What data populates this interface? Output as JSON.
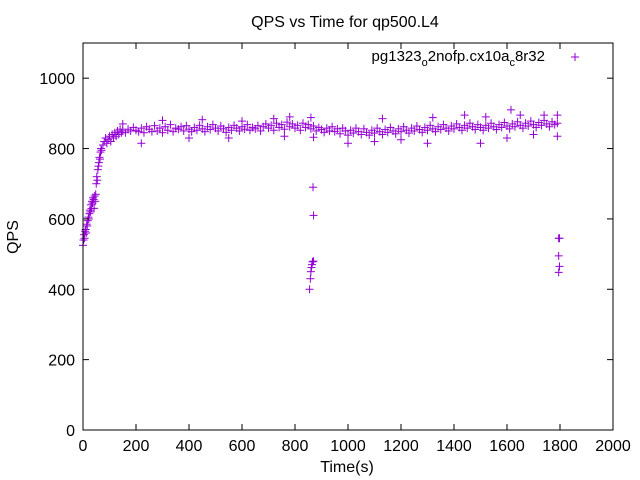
{
  "chart_data": {
    "type": "scatter",
    "title": "QPS vs Time for qp500.L4",
    "xlabel": "Time(s)",
    "ylabel": "QPS",
    "xlim": [
      0,
      2000
    ],
    "ylim": [
      0,
      1100
    ],
    "xticks": [
      0,
      200,
      400,
      600,
      800,
      1000,
      1200,
      1400,
      1600,
      1800,
      2000
    ],
    "yticks": [
      0,
      200,
      400,
      600,
      800,
      1000
    ],
    "grid": false,
    "legend_position": "top-right",
    "marker": "+",
    "color": "#9400d3",
    "series": [
      {
        "name": "pg1323_o2nofp.cx10a_c8r32",
        "name_parts": {
          "p1": "pg1323",
          "s1": "o",
          "p2": "2nofp.cx10a",
          "s2": "c",
          "p3": "8r32"
        },
        "points": [
          [
            0,
            525
          ],
          [
            2,
            540
          ],
          [
            4,
            555
          ],
          [
            6,
            545
          ],
          [
            8,
            565
          ],
          [
            10,
            570
          ],
          [
            12,
            560
          ],
          [
            14,
            585
          ],
          [
            16,
            580
          ],
          [
            18,
            595
          ],
          [
            20,
            605
          ],
          [
            22,
            600
          ],
          [
            24,
            615
          ],
          [
            26,
            625
          ],
          [
            28,
            620
          ],
          [
            30,
            640
          ],
          [
            32,
            630
          ],
          [
            34,
            650
          ],
          [
            36,
            645
          ],
          [
            38,
            660
          ],
          [
            40,
            655
          ],
          [
            42,
            630
          ],
          [
            44,
            665
          ],
          [
            46,
            650
          ],
          [
            48,
            670
          ],
          [
            50,
            700
          ],
          [
            52,
            720
          ],
          [
            54,
            710
          ],
          [
            56,
            740
          ],
          [
            58,
            750
          ],
          [
            60,
            760
          ],
          [
            62,
            775
          ],
          [
            64,
            770
          ],
          [
            66,
            790
          ],
          [
            68,
            800
          ],
          [
            70,
            795
          ],
          [
            75,
            810
          ],
          [
            80,
            820
          ],
          [
            85,
            830
          ],
          [
            90,
            815
          ],
          [
            95,
            825
          ],
          [
            100,
            835
          ],
          [
            105,
            820
          ],
          [
            110,
            840
          ],
          [
            115,
            830
          ],
          [
            120,
            845
          ],
          [
            125,
            835
          ],
          [
            130,
            850
          ],
          [
            135,
            840
          ],
          [
            140,
            855
          ],
          [
            145,
            845
          ],
          [
            150,
            850
          ],
          [
            160,
            845
          ],
          [
            170,
            855
          ],
          [
            180,
            850
          ],
          [
            190,
            860
          ],
          [
            200,
            852
          ],
          [
            210,
            848
          ],
          [
            220,
            858
          ],
          [
            230,
            845
          ],
          [
            240,
            862
          ],
          [
            250,
            855
          ],
          [
            260,
            848
          ],
          [
            270,
            865
          ],
          [
            280,
            850
          ],
          [
            290,
            858
          ],
          [
            300,
            845
          ],
          [
            310,
            862
          ],
          [
            320,
            852
          ],
          [
            330,
            868
          ],
          [
            340,
            848
          ],
          [
            350,
            858
          ],
          [
            360,
            855
          ],
          [
            370,
            862
          ],
          [
            380,
            850
          ],
          [
            390,
            865
          ],
          [
            400,
            855
          ],
          [
            410,
            848
          ],
          [
            420,
            860
          ],
          [
            430,
            852
          ],
          [
            440,
            866
          ],
          [
            450,
            856
          ],
          [
            460,
            848
          ],
          [
            470,
            862
          ],
          [
            480,
            854
          ],
          [
            490,
            868
          ],
          [
            500,
            858
          ],
          [
            510,
            850
          ],
          [
            520,
            864
          ],
          [
            530,
            856
          ],
          [
            540,
            846
          ],
          [
            550,
            860
          ],
          [
            560,
            852
          ],
          [
            570,
            866
          ],
          [
            580,
            858
          ],
          [
            590,
            850
          ],
          [
            600,
            862
          ],
          [
            610,
            855
          ],
          [
            620,
            868
          ],
          [
            630,
            852
          ],
          [
            640,
            860
          ],
          [
            650,
            856
          ],
          [
            660,
            865
          ],
          [
            670,
            850
          ],
          [
            680,
            862
          ],
          [
            690,
            870
          ],
          [
            700,
            858
          ],
          [
            710,
            866
          ],
          [
            720,
            852
          ],
          [
            730,
            872
          ],
          [
            740,
            860
          ],
          [
            750,
            868
          ],
          [
            760,
            855
          ],
          [
            770,
            875
          ],
          [
            780,
            862
          ],
          [
            790,
            870
          ],
          [
            800,
            858
          ],
          [
            810,
            866
          ],
          [
            820,
            852
          ],
          [
            830,
            872
          ],
          [
            840,
            860
          ],
          [
            850,
            868
          ],
          [
            860,
            856
          ],
          [
            870,
            864
          ],
          [
            880,
            850
          ],
          [
            890,
            860
          ],
          [
            900,
            854
          ],
          [
            910,
            846
          ],
          [
            920,
            858
          ],
          [
            930,
            850
          ],
          [
            940,
            862
          ],
          [
            950,
            848
          ],
          [
            960,
            856
          ],
          [
            970,
            842
          ],
          [
            980,
            858
          ],
          [
            990,
            850
          ],
          [
            1000,
            838
          ],
          [
            1010,
            852
          ],
          [
            1020,
            844
          ],
          [
            1030,
            858
          ],
          [
            1040,
            848
          ],
          [
            1050,
            840
          ],
          [
            1060,
            856
          ],
          [
            1070,
            846
          ],
          [
            1080,
            838
          ],
          [
            1090,
            852
          ],
          [
            1100,
            844
          ],
          [
            1110,
            858
          ],
          [
            1120,
            848
          ],
          [
            1130,
            840
          ],
          [
            1140,
            854
          ],
          [
            1150,
            846
          ],
          [
            1160,
            860
          ],
          [
            1170,
            850
          ],
          [
            1180,
            842
          ],
          [
            1190,
            856
          ],
          [
            1200,
            848
          ],
          [
            1210,
            862
          ],
          [
            1220,
            852
          ],
          [
            1230,
            844
          ],
          [
            1240,
            858
          ],
          [
            1250,
            850
          ],
          [
            1260,
            864
          ],
          [
            1270,
            854
          ],
          [
            1280,
            846
          ],
          [
            1290,
            860
          ],
          [
            1300,
            852
          ],
          [
            1310,
            866
          ],
          [
            1320,
            856
          ],
          [
            1330,
            848
          ],
          [
            1340,
            862
          ],
          [
            1350,
            854
          ],
          [
            1360,
            868
          ],
          [
            1370,
            858
          ],
          [
            1380,
            850
          ],
          [
            1390,
            864
          ],
          [
            1400,
            856
          ],
          [
            1410,
            870
          ],
          [
            1420,
            860
          ],
          [
            1430,
            852
          ],
          [
            1440,
            866
          ],
          [
            1450,
            858
          ],
          [
            1460,
            872
          ],
          [
            1470,
            862
          ],
          [
            1480,
            854
          ],
          [
            1490,
            868
          ],
          [
            1500,
            860
          ],
          [
            1510,
            852
          ],
          [
            1520,
            866
          ],
          [
            1530,
            858
          ],
          [
            1540,
            872
          ],
          [
            1550,
            862
          ],
          [
            1560,
            854
          ],
          [
            1570,
            868
          ],
          [
            1580,
            860
          ],
          [
            1590,
            874
          ],
          [
            1600,
            864
          ],
          [
            1610,
            856
          ],
          [
            1620,
            870
          ],
          [
            1630,
            862
          ],
          [
            1640,
            876
          ],
          [
            1650,
            866
          ],
          [
            1660,
            858
          ],
          [
            1670,
            872
          ],
          [
            1680,
            864
          ],
          [
            1690,
            878
          ],
          [
            1700,
            868
          ],
          [
            1710,
            860
          ],
          [
            1720,
            874
          ],
          [
            1730,
            866
          ],
          [
            1740,
            880
          ],
          [
            1750,
            870
          ],
          [
            1760,
            862
          ],
          [
            1770,
            876
          ],
          [
            1780,
            868
          ],
          [
            1790,
            872
          ],
          [
            150,
            870
          ],
          [
            300,
            880
          ],
          [
            450,
            882
          ],
          [
            600,
            878
          ],
          [
            720,
            885
          ],
          [
            780,
            890
          ],
          [
            860,
            888
          ],
          [
            1130,
            885
          ],
          [
            1320,
            888
          ],
          [
            1440,
            895
          ],
          [
            1520,
            890
          ],
          [
            1615,
            910
          ],
          [
            1650,
            895
          ],
          [
            1740,
            895
          ],
          [
            1790,
            895
          ],
          [
            220,
            815
          ],
          [
            400,
            830
          ],
          [
            550,
            830
          ],
          [
            760,
            835
          ],
          [
            870,
            832
          ],
          [
            1000,
            815
          ],
          [
            1100,
            820
          ],
          [
            1200,
            825
          ],
          [
            1300,
            815
          ],
          [
            1500,
            815
          ],
          [
            1600,
            830
          ],
          [
            1700,
            840
          ],
          [
            1790,
            835
          ],
          [
            855,
            400
          ],
          [
            858,
            430
          ],
          [
            860,
            450
          ],
          [
            862,
            462
          ],
          [
            864,
            470
          ],
          [
            866,
            478
          ],
          [
            870,
            480
          ],
          [
            868,
            690
          ],
          [
            870,
            610
          ],
          [
            1795,
            545
          ],
          [
            1798,
            545
          ],
          [
            1795,
            495
          ],
          [
            1798,
            465
          ],
          [
            1795,
            448
          ]
        ]
      }
    ]
  }
}
